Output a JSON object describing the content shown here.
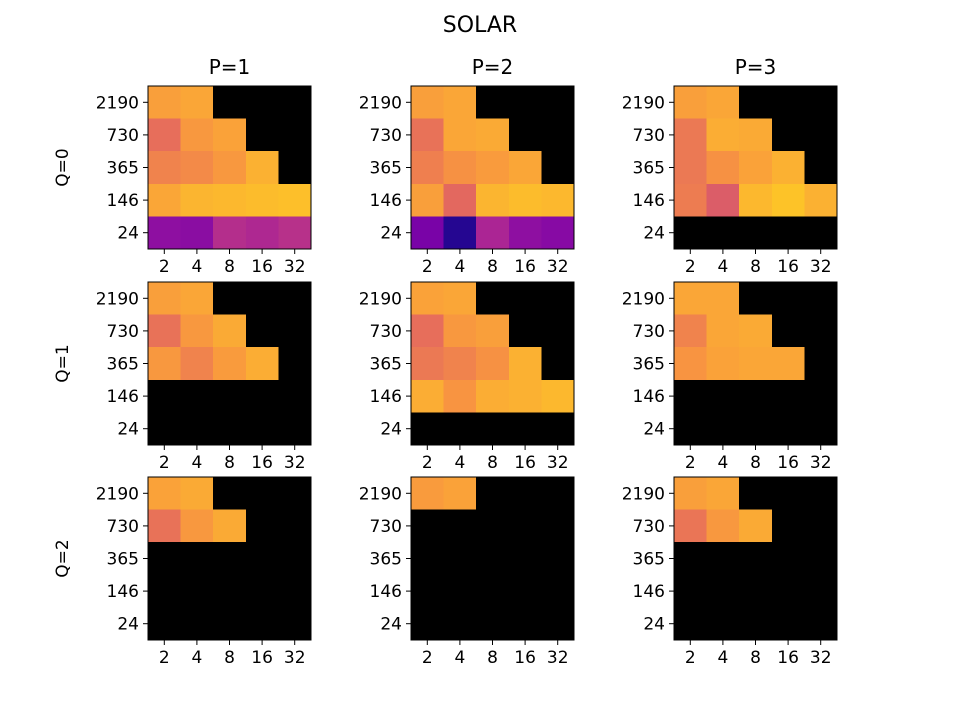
{
  "chart_data": {
    "type": "heatmap",
    "title": "SOLAR",
    "column_titles": [
      "P=1",
      "P=2",
      "P=3"
    ],
    "row_labels": [
      "Q=0",
      "Q=1",
      "Q=2"
    ],
    "x_ticks": [
      "2",
      "4",
      "8",
      "16",
      "32"
    ],
    "y_ticks": [
      "2190",
      "730",
      "365",
      "146",
      "24"
    ],
    "colormap": "plasma",
    "value_range": [
      0,
      1
    ],
    "missing_color": "#000000",
    "grid": false,
    "panels": [
      {
        "row": "Q=0",
        "col": "P=1",
        "values": [
          [
            0.78,
            0.8,
            null,
            null,
            null
          ],
          [
            0.64,
            0.76,
            0.79,
            null,
            null
          ],
          [
            0.7,
            0.72,
            0.76,
            0.83,
            null
          ],
          [
            0.8,
            0.84,
            0.85,
            0.86,
            0.87
          ],
          [
            0.3,
            0.29,
            0.42,
            0.4,
            0.43
          ]
        ]
      },
      {
        "row": "Q=0",
        "col": "P=2",
        "values": [
          [
            0.78,
            0.8,
            null,
            null,
            null
          ],
          [
            0.65,
            0.8,
            0.81,
            null,
            null
          ],
          [
            0.69,
            0.74,
            0.77,
            0.8,
            null
          ],
          [
            0.78,
            0.62,
            0.84,
            0.86,
            0.85
          ],
          [
            0.24,
            0.05,
            0.39,
            0.3,
            0.28
          ]
        ]
      },
      {
        "row": "Q=0",
        "col": "P=3",
        "values": [
          [
            0.78,
            0.8,
            null,
            null,
            null
          ],
          [
            0.67,
            0.82,
            0.81,
            null,
            null
          ],
          [
            0.67,
            0.74,
            0.79,
            0.83,
            null
          ],
          [
            0.68,
            0.58,
            0.85,
            0.88,
            0.83
          ],
          [
            null,
            null,
            null,
            null,
            null
          ]
        ]
      },
      {
        "row": "Q=1",
        "col": "P=1",
        "values": [
          [
            0.78,
            0.8,
            null,
            null,
            null
          ],
          [
            0.65,
            0.76,
            0.81,
            null,
            null
          ],
          [
            0.76,
            0.7,
            0.77,
            0.82,
            null
          ],
          [
            null,
            null,
            null,
            null,
            null
          ],
          [
            null,
            null,
            null,
            null,
            null
          ]
        ]
      },
      {
        "row": "Q=1",
        "col": "P=2",
        "values": [
          [
            0.79,
            0.8,
            null,
            null,
            null
          ],
          [
            0.64,
            0.76,
            0.78,
            null,
            null
          ],
          [
            0.67,
            0.7,
            0.74,
            0.83,
            null
          ],
          [
            0.82,
            0.75,
            0.82,
            0.83,
            0.85
          ],
          [
            null,
            null,
            null,
            null,
            null
          ]
        ]
      },
      {
        "row": "Q=1",
        "col": "P=3",
        "values": [
          [
            0.8,
            0.8,
            null,
            null,
            null
          ],
          [
            0.7,
            0.8,
            0.81,
            null,
            null
          ],
          [
            0.75,
            0.79,
            0.8,
            0.8,
            null
          ],
          [
            null,
            null,
            null,
            null,
            null
          ],
          [
            null,
            null,
            null,
            null,
            null
          ]
        ]
      },
      {
        "row": "Q=2",
        "col": "P=1",
        "values": [
          [
            0.79,
            0.81,
            null,
            null,
            null
          ],
          [
            0.65,
            0.76,
            0.81,
            null,
            null
          ],
          [
            null,
            null,
            null,
            null,
            null
          ],
          [
            null,
            null,
            null,
            null,
            null
          ],
          [
            null,
            null,
            null,
            null,
            null
          ]
        ]
      },
      {
        "row": "Q=2",
        "col": "P=2",
        "values": [
          [
            0.77,
            0.79,
            null,
            null,
            null
          ],
          [
            null,
            null,
            null,
            null,
            null
          ],
          [
            null,
            null,
            null,
            null,
            null
          ],
          [
            null,
            null,
            null,
            null,
            null
          ],
          [
            null,
            null,
            null,
            null,
            null
          ]
        ]
      },
      {
        "row": "Q=2",
        "col": "P=3",
        "values": [
          [
            0.78,
            0.8,
            null,
            null,
            null
          ],
          [
            0.66,
            0.76,
            0.81,
            null,
            null
          ],
          [
            null,
            null,
            null,
            null,
            null
          ],
          [
            null,
            null,
            null,
            null,
            null
          ],
          [
            null,
            null,
            null,
            null,
            null
          ]
        ]
      }
    ]
  }
}
